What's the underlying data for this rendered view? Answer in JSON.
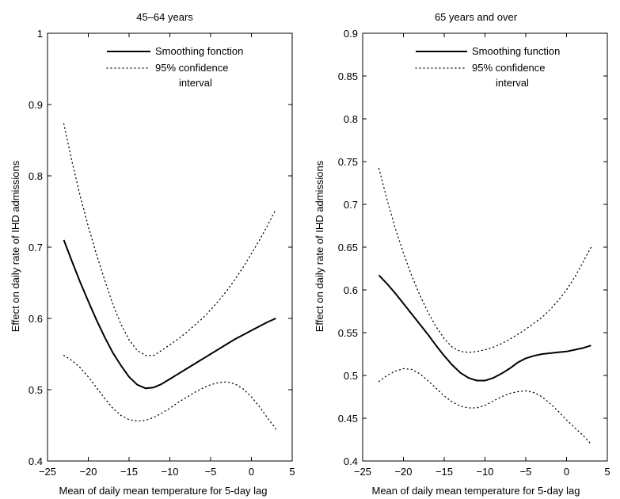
{
  "chart_data": [
    {
      "type": "line",
      "title": "45–64 years",
      "xlabel": "Mean of daily mean temperature for 5-day lag",
      "ylabel": "Effect on daily rate of IHD admissions",
      "xlim": [
        -25,
        5
      ],
      "ylim": [
        0.4,
        1.0
      ],
      "xticks": [
        -25,
        -20,
        -15,
        -10,
        -5,
        0,
        5
      ],
      "xtick_labels": [
        "−25",
        "−20",
        "−15",
        "−10",
        "−5",
        "0",
        "5"
      ],
      "yticks": [
        0.4,
        0.5,
        0.6,
        0.7,
        0.8,
        0.9,
        1.0
      ],
      "ytick_labels": [
        "0.4",
        "0.5",
        "0.6",
        "0.7",
        "0.8",
        "0.9",
        "1"
      ],
      "grid": false,
      "legend_position": "top-right",
      "legend": [
        {
          "label": "Smoothing fonction",
          "style": "solid"
        },
        {
          "label": "95% confidence",
          "label2": "interval",
          "style": "dotted"
        }
      ],
      "series": [
        {
          "role": "estimate",
          "style": "solid",
          "x": [
            -23,
            -22,
            -21,
            -20,
            -19,
            -18,
            -17,
            -16,
            -15,
            -14,
            -13,
            -12,
            -11,
            -10,
            -9,
            -8,
            -7,
            -6,
            -5,
            -4,
            -3,
            -2,
            -1,
            0,
            1,
            2,
            3
          ],
          "y": [
            0.71,
            0.68,
            0.651,
            0.624,
            0.598,
            0.574,
            0.552,
            0.534,
            0.518,
            0.507,
            0.502,
            0.503,
            0.508,
            0.515,
            0.522,
            0.529,
            0.536,
            0.543,
            0.55,
            0.557,
            0.564,
            0.571,
            0.577,
            0.583,
            0.589,
            0.595,
            0.6
          ]
        },
        {
          "role": "upper",
          "style": "dotted",
          "x": [
            -23,
            -22,
            -21,
            -20,
            -19,
            -18,
            -17,
            -16,
            -15,
            -14,
            -13,
            -12,
            -11,
            -10,
            -9,
            -8,
            -7,
            -6,
            -5,
            -4,
            -3,
            -2,
            -1,
            0,
            1,
            2,
            3
          ],
          "y": [
            0.873,
            0.82,
            0.772,
            0.729,
            0.69,
            0.654,
            0.62,
            0.592,
            0.57,
            0.555,
            0.548,
            0.548,
            0.555,
            0.563,
            0.571,
            0.58,
            0.59,
            0.6,
            0.612,
            0.625,
            0.639,
            0.655,
            0.672,
            0.691,
            0.71,
            0.731,
            0.753
          ]
        },
        {
          "role": "lower",
          "style": "dotted",
          "x": [
            -23,
            -22,
            -21,
            -20,
            -19,
            -18,
            -17,
            -16,
            -15,
            -14,
            -13,
            -12,
            -11,
            -10,
            -9,
            -8,
            -7,
            -6,
            -5,
            -4,
            -3,
            -2,
            -1,
            0,
            1,
            2,
            3
          ],
          "y": [
            0.548,
            0.541,
            0.531,
            0.518,
            0.503,
            0.488,
            0.474,
            0.464,
            0.458,
            0.456,
            0.457,
            0.461,
            0.467,
            0.474,
            0.482,
            0.489,
            0.496,
            0.502,
            0.507,
            0.51,
            0.511,
            0.508,
            0.501,
            0.49,
            0.476,
            0.46,
            0.445
          ]
        }
      ]
    },
    {
      "type": "line",
      "title": "65 years and over",
      "xlabel": "Mean of daily mean temperature for 5-day lag",
      "ylabel": "Effect on daily rate of IHD admissions",
      "xlim": [
        -25,
        5
      ],
      "ylim": [
        0.4,
        0.9
      ],
      "xticks": [
        -25,
        -20,
        -15,
        -10,
        -5,
        0,
        5
      ],
      "xtick_labels": [
        "−25",
        "−20",
        "−15",
        "−10",
        "−5",
        "0",
        "5"
      ],
      "yticks": [
        0.4,
        0.45,
        0.5,
        0.55,
        0.6,
        0.65,
        0.7,
        0.75,
        0.8,
        0.85,
        0.9
      ],
      "ytick_labels": [
        "0.4",
        "0.45",
        "0.5",
        "0.55",
        "0.6",
        "0.65",
        "0.7",
        "0.75",
        "0.8",
        "0.85",
        "0.9"
      ],
      "grid": false,
      "legend_position": "top-right",
      "legend": [
        {
          "label": "Smoothing function",
          "style": "solid"
        },
        {
          "label": "95% confidence",
          "label2": "interval",
          "style": "dotted"
        }
      ],
      "series": [
        {
          "role": "estimate",
          "style": "solid",
          "x": [
            -23,
            -22,
            -21,
            -20,
            -19,
            -18,
            -17,
            -16,
            -15,
            -14,
            -13,
            -12,
            -11,
            -10,
            -9,
            -8,
            -7,
            -6,
            -5,
            -4,
            -3,
            -2,
            -1,
            0,
            1,
            2,
            3
          ],
          "y": [
            0.617,
            0.607,
            0.596,
            0.584,
            0.572,
            0.56,
            0.548,
            0.535,
            0.523,
            0.512,
            0.503,
            0.497,
            0.494,
            0.494,
            0.497,
            0.502,
            0.508,
            0.515,
            0.52,
            0.523,
            0.525,
            0.526,
            0.527,
            0.528,
            0.53,
            0.532,
            0.535
          ]
        },
        {
          "role": "upper",
          "style": "dotted",
          "x": [
            -23,
            -22,
            -21,
            -20,
            -19,
            -18,
            -17,
            -16,
            -15,
            -14,
            -13,
            -12,
            -11,
            -10,
            -9,
            -8,
            -7,
            -6,
            -5,
            -4,
            -3,
            -2,
            -1,
            0,
            1,
            2,
            3
          ],
          "y": [
            0.742,
            0.705,
            0.672,
            0.643,
            0.617,
            0.594,
            0.574,
            0.557,
            0.543,
            0.533,
            0.528,
            0.527,
            0.528,
            0.53,
            0.533,
            0.537,
            0.542,
            0.548,
            0.554,
            0.561,
            0.568,
            0.577,
            0.588,
            0.6,
            0.615,
            0.632,
            0.65
          ]
        },
        {
          "role": "lower",
          "style": "dotted",
          "x": [
            -23,
            -22,
            -21,
            -20,
            -19,
            -18,
            -17,
            -16,
            -15,
            -14,
            -13,
            -12,
            -11,
            -10,
            -9,
            -8,
            -7,
            -6,
            -5,
            -4,
            -3,
            -2,
            -1,
            0,
            1,
            2,
            3
          ],
          "y": [
            0.493,
            0.5,
            0.505,
            0.508,
            0.507,
            0.502,
            0.494,
            0.485,
            0.476,
            0.469,
            0.464,
            0.462,
            0.462,
            0.465,
            0.47,
            0.475,
            0.479,
            0.481,
            0.482,
            0.48,
            0.475,
            0.467,
            0.458,
            0.448,
            0.439,
            0.43,
            0.42
          ]
        }
      ]
    }
  ]
}
